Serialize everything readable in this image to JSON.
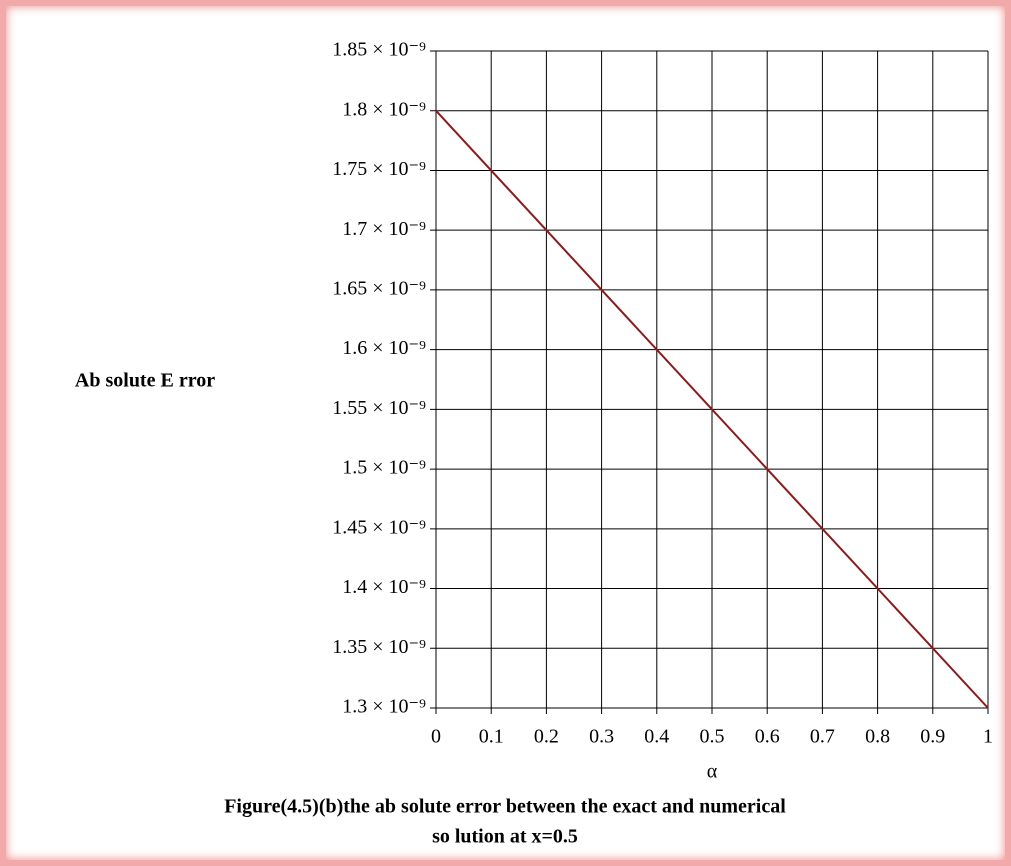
{
  "chart_data": {
    "type": "line",
    "xlabel": "α",
    "ylabel": "Ab solute E rror",
    "caption": [
      "Figure(4.5)(b)the ab solute error between the exact and numerical",
      "so lution at x=0.5"
    ],
    "x": [
      0,
      1
    ],
    "series": [
      {
        "name": "Absolute Error",
        "color": "#8b1a1a",
        "values": [
          1.8e-09,
          1.3e-09
        ]
      }
    ],
    "xlim": [
      0,
      1
    ],
    "xticks": [
      0,
      0.1,
      0.2,
      0.3,
      0.4,
      0.5,
      0.6,
      0.7,
      0.8,
      0.9,
      1
    ],
    "ylim": [
      1.3e-09,
      1.85e-09
    ],
    "yticks": [
      {
        "value": 1.3e-09,
        "label": "1.3 × 10⁻⁹"
      },
      {
        "value": 1.35e-09,
        "label": "1.35 × 10⁻⁹"
      },
      {
        "value": 1.4e-09,
        "label": "1.4 × 10⁻⁹"
      },
      {
        "value": 1.45e-09,
        "label": "1.45 × 10⁻⁹"
      },
      {
        "value": 1.5e-09,
        "label": "1.5 × 10⁻⁹"
      },
      {
        "value": 1.55e-09,
        "label": "1.55 × 10⁻⁹"
      },
      {
        "value": 1.6e-09,
        "label": "1.6 × 10⁻⁹"
      },
      {
        "value": 1.65e-09,
        "label": "1.65 × 10⁻⁹"
      },
      {
        "value": 1.7e-09,
        "label": "1.7 × 10⁻⁹"
      },
      {
        "value": 1.75e-09,
        "label": "1.75 × 10⁻⁹"
      },
      {
        "value": 1.8e-09,
        "label": "1.8 × 10⁻⁹"
      },
      {
        "value": 1.85e-09,
        "label": "1.85 × 10⁻⁹"
      }
    ],
    "grid": true
  }
}
